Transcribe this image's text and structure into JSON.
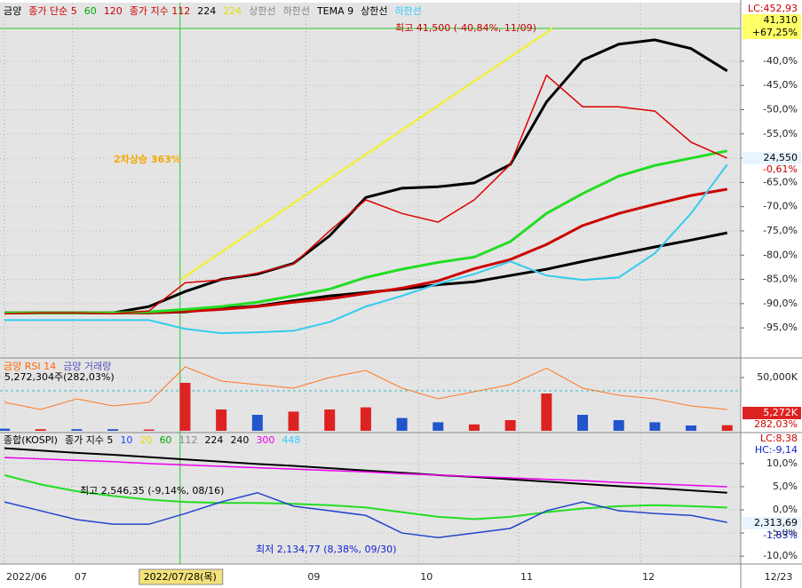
{
  "chart_data": [
    {
      "type": "line",
      "legend": [
        {
          "label": "금양",
          "color": "#000000"
        },
        {
          "label": "종가 단순 5",
          "color": "#cc0000"
        },
        {
          "label": "60",
          "color": "#00aa00"
        },
        {
          "label": "120",
          "color": "#cc0000"
        },
        {
          "label": "종가 지수 112",
          "color": "#cc0000"
        },
        {
          "label": "224",
          "color": "#000000"
        },
        {
          "label": "224",
          "color": "#e0e000"
        },
        {
          "label": "상한선",
          "color": "#888888"
        },
        {
          "label": "하한선",
          "color": "#888888"
        },
        {
          "label": "TEMA 9",
          "color": "#000000"
        },
        {
          "label": "상한선",
          "color": "#000000"
        },
        {
          "label": "하한선",
          "color": "#33ccff"
        }
      ],
      "headline": "2차상승 363%",
      "high_label": "최고 41,500 (-40,84%, 11/09)",
      "right_labels": {
        "lc": "LC:452,93",
        "price": "41,310",
        "change": "+67,25%",
        "last": "24,550",
        "last_change": "-0,61%"
      },
      "xlim": [
        0,
        20.35
      ],
      "xticks": [
        {
          "value": 0,
          "label": "2022/06"
        },
        {
          "value": 1.89,
          "label": "07"
        },
        {
          "value": 8.34,
          "label": "09"
        },
        {
          "value": 11.46,
          "label": "10"
        },
        {
          "value": 14.23,
          "label": "11"
        },
        {
          "value": 17.6,
          "label": "12"
        },
        {
          "value": 20.98,
          "label": "12/23"
        }
      ],
      "cursor": {
        "value": 4.86,
        "label": "2022/07/28(목)"
      },
      "ylim": [
        -101.2,
        -28.3
      ],
      "yticks": [
        {
          "value": -40,
          "label": "-40,0%"
        },
        {
          "value": -45,
          "label": "-45,0%"
        },
        {
          "value": -50,
          "label": "-50,0%"
        },
        {
          "value": -55,
          "label": "-55,0%"
        },
        {
          "value": -60,
          "label": "-60,0%"
        },
        {
          "value": -65,
          "label": "-65,0%"
        },
        {
          "value": -70,
          "label": "-70,0%"
        },
        {
          "value": -75,
          "label": "-75,0%"
        },
        {
          "value": -80,
          "label": "-80,0%"
        },
        {
          "value": -85,
          "label": "-85,0%"
        },
        {
          "value": -90,
          "label": "-90,0%"
        },
        {
          "value": -95,
          "label": "-95,0%"
        }
      ],
      "series": [
        {
          "color": "#000000",
          "width": 3,
          "values": [
            -91.9,
            -91.9,
            -91.9,
            -91.9,
            -90.6,
            -87.5,
            -85.0,
            -83.9,
            -81.7,
            -76.0,
            -68.1,
            -66.2,
            -65.9,
            -65.1,
            -61.3,
            -48.4,
            -39.8,
            -36.5,
            -35.6,
            -37.4,
            -42.0
          ]
        },
        {
          "color": "#000000",
          "width": 3,
          "values": [
            -91.9,
            -91.9,
            -91.9,
            -91.9,
            -91.9,
            -91.7,
            -91.0,
            -90.5,
            -89.4,
            -88.4,
            -87.7,
            -87.0,
            -86.1,
            -85.5,
            -84.2,
            -82.9,
            -81.3,
            -79.8,
            -78.3,
            -76.9,
            -75.4
          ]
        },
        {
          "color": "#cc0000",
          "width": 3,
          "values": [
            -91.9,
            -91.9,
            -91.9,
            -91.9,
            -91.9,
            -91.6,
            -91.2,
            -90.6,
            -89.7,
            -89.0,
            -87.9,
            -86.8,
            -85.3,
            -82.8,
            -80.9,
            -77.8,
            -73.9,
            -71.4,
            -69.5,
            -67.7,
            -66.4
          ]
        },
        {
          "color": "#22dd22",
          "width": 3,
          "values": [
            -91.9,
            -91.9,
            -91.9,
            -91.9,
            -91.7,
            -91.2,
            -90.6,
            -89.7,
            -88.4,
            -87.0,
            -84.6,
            -82.9,
            -81.5,
            -80.4,
            -77.2,
            -71.4,
            -67.3,
            -63.7,
            -61.5,
            -60.0,
            -58.5
          ]
        },
        {
          "color": "#33ccee",
          "width": 2,
          "values": [
            -93.4,
            -93.4,
            -93.4,
            -93.4,
            -93.4,
            -95.2,
            -96.1,
            -95.9,
            -95.6,
            -93.8,
            -90.6,
            -88.4,
            -85.9,
            -83.9,
            -81.3,
            -84.2,
            -85.1,
            -84.6,
            -79.6,
            -71.4,
            -61.3
          ]
        },
        {
          "color": "#dd0000",
          "width": 1.5,
          "values": [
            -92.1,
            -91.9,
            -91.9,
            -92.1,
            -91.5,
            -85.7,
            -85.1,
            -83.7,
            -81.8,
            -75.0,
            -68.6,
            -71.4,
            -73.2,
            -68.6,
            -61.3,
            -42.9,
            -49.4,
            -49.4,
            -50.3,
            -56.7,
            -60.0
          ]
        }
      ]
    },
    {
      "type": "bar",
      "legend": [
        {
          "label": "금양 RSI 14",
          "color": "#ff6600"
        },
        {
          "label": "금양 거래량",
          "color": "#5555bb"
        }
      ],
      "info": "5,272,304주(282,03%)",
      "right_labels": {
        "last": "5,272K",
        "last_change": "282,03%"
      },
      "ylim": [
        0,
        66700
      ],
      "yticks": [
        {
          "value": 50000,
          "label": "50,000K"
        }
      ],
      "y2lim": [
        0,
        100
      ],
      "values": [
        2000,
        1500,
        1500,
        1500,
        1200,
        45000,
        20000,
        15000,
        18000,
        20000,
        22000,
        12000,
        8000,
        6000,
        10000,
        35000,
        15000,
        10000,
        8000,
        5000,
        5272
      ],
      "colors": [
        "#2255cc",
        "#dd2222",
        "#2255cc",
        "#2255cc",
        "#dd2222",
        "#dd2222",
        "#dd2222",
        "#2255cc",
        "#dd2222",
        "#dd2222",
        "#dd2222",
        "#2255cc",
        "#2255cc",
        "#dd2222",
        "#dd2222",
        "#dd2222",
        "#2255cc",
        "#2255cc",
        "#2255cc",
        "#2255cc",
        "#dd2222"
      ],
      "series": [
        {
          "color": "#ff7722",
          "width": 1,
          "axis": "y2",
          "values": [
            40,
            30,
            45,
            35,
            40,
            90,
            70,
            65,
            60,
            75,
            85,
            60,
            45,
            55,
            65,
            88,
            60,
            50,
            45,
            35,
            30
          ]
        }
      ]
    },
    {
      "type": "line",
      "legend": [
        {
          "label": "종합(KOSPI)",
          "color": "#000000"
        },
        {
          "label": "종가 지수 5",
          "color": "#000000"
        },
        {
          "label": "10",
          "color": "#2244ff"
        },
        {
          "label": "20",
          "color": "#e0e000"
        },
        {
          "label": "60",
          "color": "#00aa00"
        },
        {
          "label": "112",
          "color": "#888888"
        },
        {
          "label": "224",
          "color": "#000000"
        },
        {
          "label": "240",
          "color": "#000000"
        },
        {
          "label": "300",
          "color": "#ee00ee"
        },
        {
          "label": "448",
          "color": "#33ccff"
        }
      ],
      "high_label": "최고 2,546,35 (-9,14%, 08/16)",
      "low_label": "최저 2,134,77 (8,38%, 09/30)",
      "right_labels": {
        "lc": "LC:8,38",
        "hc": "HC:-9,14",
        "last": "2,313,69",
        "last_change": "-1,83%"
      },
      "ylim": [
        -11.7,
        16.5
      ],
      "yticks": [
        {
          "value": 10,
          "label": "10,0%"
        },
        {
          "value": 5,
          "label": "5,0%"
        },
        {
          "value": 0,
          "label": "0,0%"
        },
        {
          "value": -5,
          "label": "-5,0%"
        },
        {
          "value": -10,
          "label": "-10,0%"
        }
      ],
      "series": [
        {
          "color": "#000000",
          "width": 2,
          "values": [
            13.3,
            12.8,
            12.3,
            11.9,
            11.4,
            10.9,
            10.4,
            9.9,
            9.5,
            9.0,
            8.5,
            8.0,
            7.5,
            7.1,
            6.6,
            6.1,
            5.6,
            5.1,
            4.7,
            4.2,
            3.7
          ]
        },
        {
          "color": "#ee00ee",
          "width": 1.5,
          "values": [
            11.3,
            11.0,
            10.7,
            10.4,
            10.0,
            9.7,
            9.4,
            9.1,
            8.8,
            8.5,
            8.2,
            7.8,
            7.5,
            7.2,
            6.9,
            6.6,
            6.3,
            5.9,
            5.6,
            5.3,
            5.0
          ]
        },
        {
          "color": "#22dd22",
          "width": 2,
          "values": [
            7.5,
            5.5,
            4.0,
            3.0,
            2.2,
            1.7,
            1.5,
            1.5,
            1.3,
            1.0,
            0.5,
            -0.5,
            -1.5,
            -2.0,
            -1.5,
            -0.5,
            0.3,
            0.8,
            1.0,
            0.8,
            0.5
          ]
        },
        {
          "color": "#2244cc",
          "width": 1.5,
          "values": [
            1.7,
            -0.2,
            -2.1,
            -3.1,
            -3.1,
            -0.8,
            1.7,
            3.7,
            0.8,
            -0.2,
            -1.2,
            -5.0,
            -6.0,
            -5.0,
            -4.0,
            -0.2,
            1.7,
            -0.2,
            -0.8,
            -1.2,
            -2.7
          ]
        }
      ]
    }
  ]
}
